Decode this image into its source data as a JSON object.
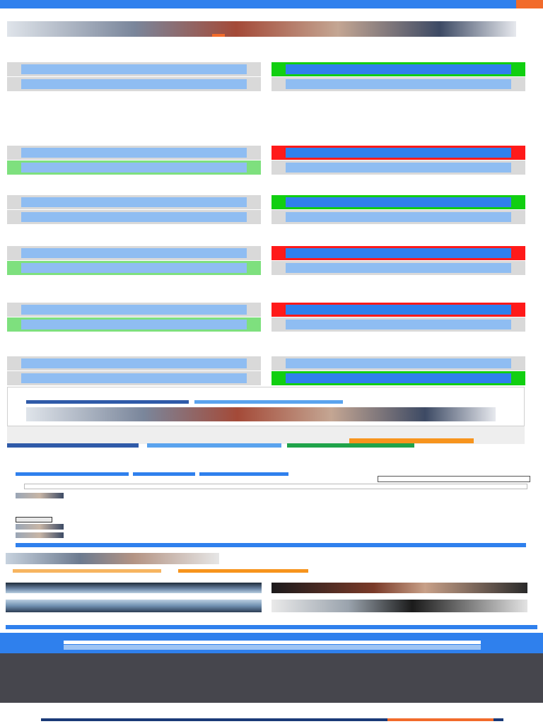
{
  "site": {
    "logo_text": "",
    "menu_label": ""
  },
  "header": {
    "title": "",
    "meta": "",
    "intro_a": "",
    "intro_b": ""
  },
  "questions": [
    {
      "title": "",
      "feedback": "",
      "options": [
        "",
        "",
        "",
        ""
      ],
      "states": [
        "none",
        "correct",
        "none",
        "none"
      ]
    },
    {
      "title": "",
      "feedback": "",
      "options": [
        "",
        "",
        "",
        ""
      ],
      "states": [
        "none",
        "wrong",
        "missed",
        "none"
      ]
    },
    {
      "title": "",
      "feedback": "",
      "options": [
        "",
        "",
        "",
        ""
      ],
      "states": [
        "none",
        "correct",
        "none",
        "none"
      ]
    },
    {
      "title": "",
      "feedback": "",
      "options": [
        "",
        "",
        "",
        ""
      ],
      "states": [
        "none",
        "wrong",
        "missed",
        "none"
      ]
    },
    {
      "title": "",
      "feedback": "",
      "options": [
        "",
        "",
        "",
        ""
      ],
      "states": [
        "none",
        "wrong",
        "missed",
        "none"
      ]
    },
    {
      "title": "",
      "feedback": "",
      "options": [
        "",
        "",
        "",
        ""
      ],
      "states": [
        "none",
        "none",
        "none",
        "correct"
      ]
    }
  ],
  "result": {
    "title": "",
    "subtitle": ""
  },
  "pilot_box": {
    "title": "",
    "text": "",
    "button": ""
  },
  "share": {
    "facebook": "",
    "twitter": "",
    "email": ""
  },
  "comments_section": {
    "tabs": [
      "",
      "",
      ""
    ],
    "count": "",
    "sort_label": "",
    "sort_value": "",
    "input_placeholder": "",
    "comments": [
      "",
      "",
      ""
    ],
    "load_more": "",
    "plugin_label": ""
  },
  "promo": {
    "headline": "",
    "subtitle": ""
  },
  "related": {
    "heading": "",
    "items": [
      {
        "caption": "",
        "caption2": ""
      },
      {
        "caption": "",
        "caption2": ""
      }
    ],
    "more_label": "",
    "read_more": "",
    "categories": [
      "",
      "",
      "",
      ""
    ]
  },
  "signup": {
    "title": "",
    "input_placeholder": "",
    "button": ""
  },
  "footer": {
    "support_heading": "",
    "support_lines": [
      "",
      ""
    ],
    "connect_heading": "",
    "connect_lines": [
      "",
      "",
      "",
      ""
    ],
    "about_heading": "",
    "about_lines": [
      ""
    ]
  },
  "legal": {
    "lines": [
      "",
      ""
    ]
  },
  "colors": {
    "brand_blue": "#2f80ed",
    "correct_green": "#11cf11",
    "wrong_red": "#ff1a1a",
    "accent_orange": "#f26b2b",
    "footer_bg": "#46464d"
  }
}
